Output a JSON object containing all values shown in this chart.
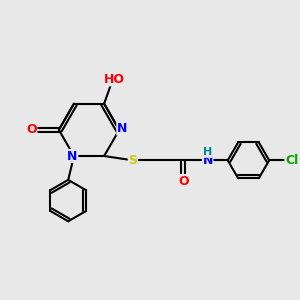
{
  "bg_color": "#e8e8e8",
  "atom_colors": {
    "C": "#000000",
    "N": "#0000ff",
    "O": "#ff0000",
    "S": "#cccc00",
    "Cl": "#00aa00",
    "H": "#008888"
  },
  "bond_width": 1.5,
  "font_size": 9
}
